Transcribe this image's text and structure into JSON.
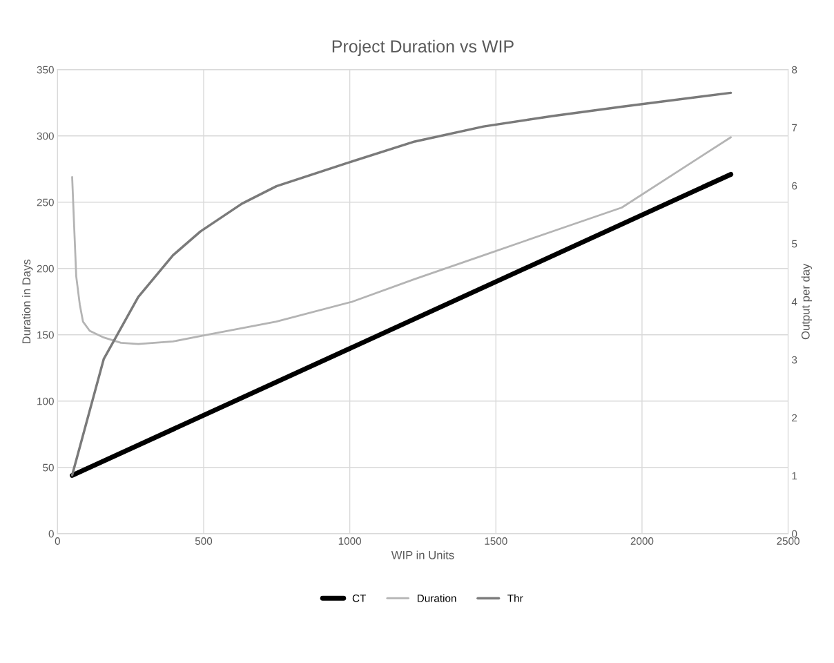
{
  "chart_data": {
    "type": "line",
    "title": "Project Duration vs WIP",
    "xlabel": "WIP in Units",
    "ylabel": "Duration in Days",
    "y2label": "Output per day",
    "xlim": [
      0,
      2500
    ],
    "xticks": [
      0,
      500,
      1000,
      1500,
      2000,
      2500
    ],
    "ylim": [
      0,
      350
    ],
    "yticks": [
      0,
      50,
      100,
      150,
      200,
      250,
      300,
      350
    ],
    "y2lim": [
      0,
      8
    ],
    "y2ticks": [
      0,
      1,
      2,
      3,
      4,
      5,
      6,
      7,
      8
    ],
    "grid": true,
    "legend": "bottom",
    "marker": "none",
    "series": [
      {
        "name": "CT",
        "color": "#000000",
        "x": [
          50,
          2304
        ],
        "values": [
          44,
          271
        ]
      },
      {
        "name": "Duration",
        "color": "#b4b4b4",
        "x": [
          50,
          57,
          64,
          76,
          87,
          110,
          158,
          217,
          276,
          395,
          489,
          749,
          1009,
          1222,
          1458,
          1694,
          1931,
          2304
        ],
        "values": [
          269,
          231,
          194,
          173,
          160,
          153,
          148,
          144,
          143,
          145,
          149,
          160,
          175,
          192,
          210,
          228,
          246,
          299
        ]
      },
      {
        "name": "Thr",
        "color": "#7a7a7a",
        "axis": "y2",
        "x": [
          50,
          158,
          276,
          395,
          489,
          631,
          749,
          985,
          1222,
          1458,
          1694,
          1931,
          2304
        ],
        "values": [
          1.01,
          3.01,
          4.08,
          4.8,
          5.21,
          5.69,
          5.99,
          6.38,
          6.76,
          7.02,
          7.2,
          7.36,
          7.6
        ]
      }
    ]
  }
}
